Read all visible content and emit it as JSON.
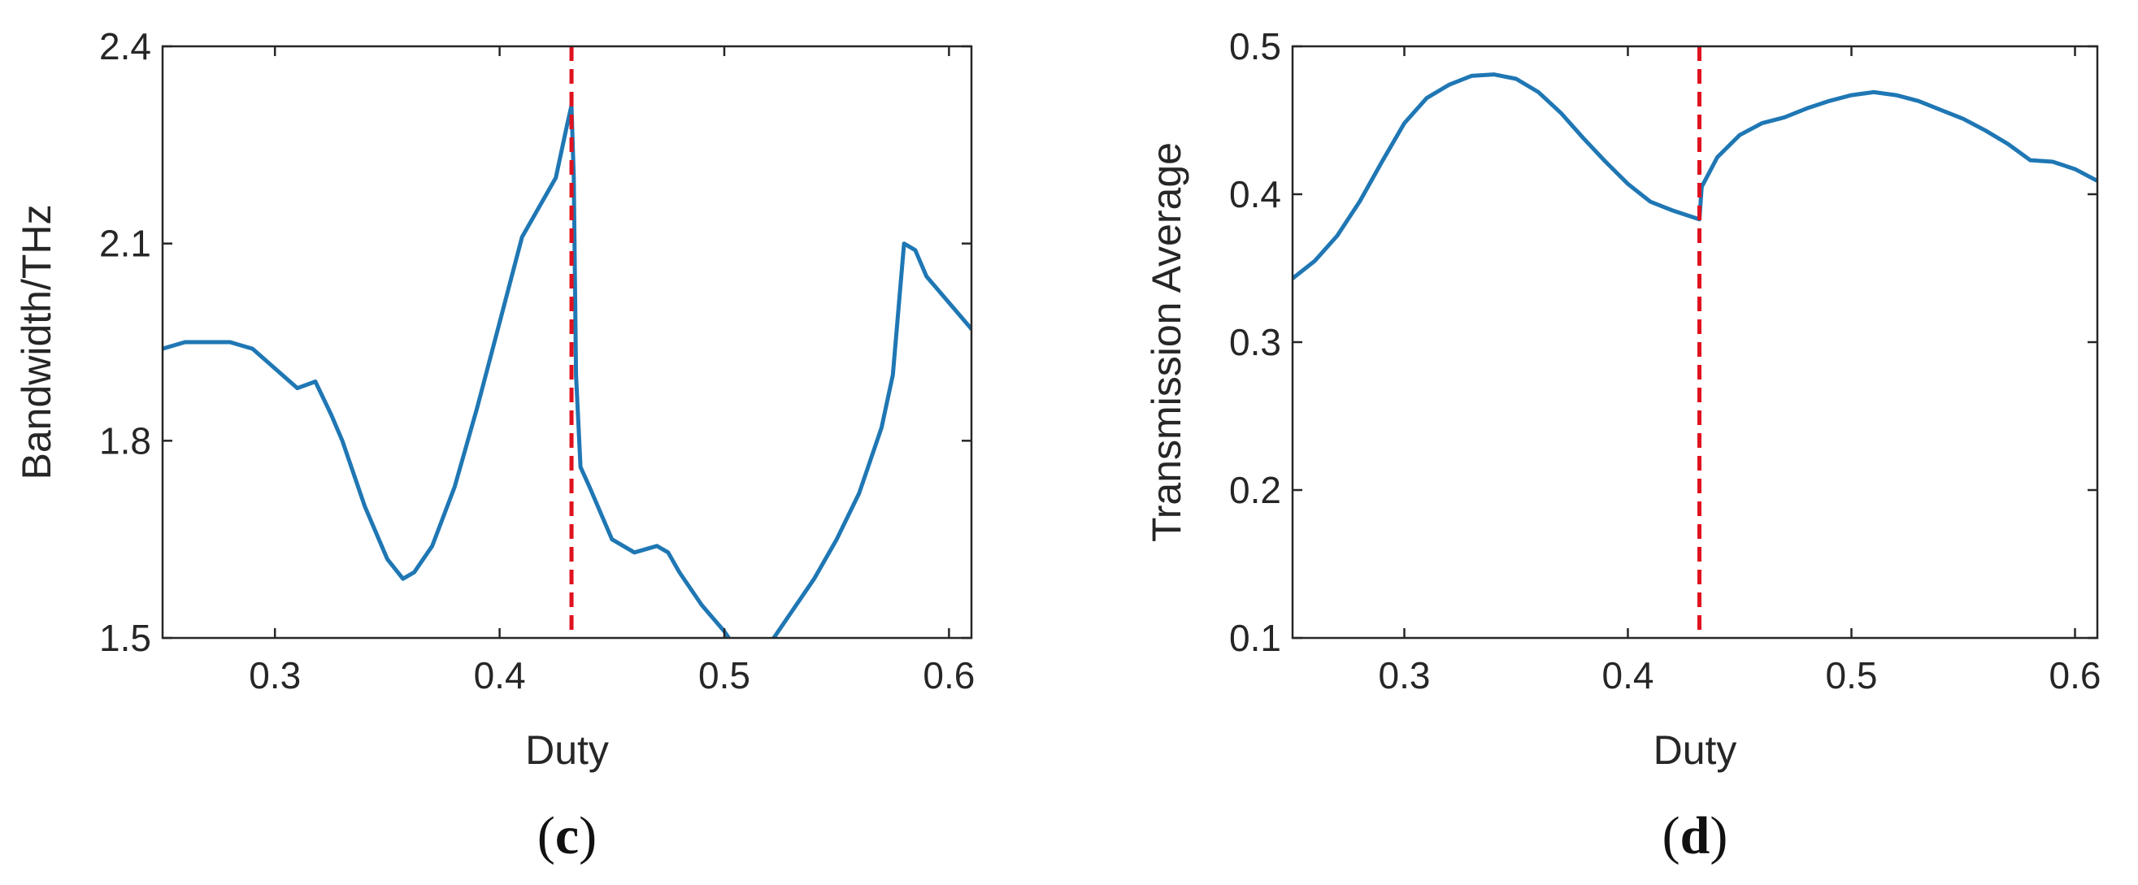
{
  "chart_data": [
    {
      "type": "line",
      "panel_label": "c",
      "title": "",
      "xlabel": "Duty",
      "ylabel": "Bandwidth/THz",
      "xlim": [
        0.25,
        0.61
      ],
      "ylim": [
        1.5,
        2.4
      ],
      "xticks": [
        0.3,
        0.4,
        0.5,
        0.6
      ],
      "xtick_labels": [
        "0.3",
        "0.4",
        "0.5",
        "0.6"
      ],
      "yticks": [
        1.5,
        1.8,
        2.1,
        2.4
      ],
      "ytick_labels": [
        "1.5",
        "1.8",
        "2.1",
        "2.4"
      ],
      "grid": false,
      "vline": {
        "x": 0.432,
        "color": "#e0121f",
        "style": "dashed"
      },
      "series": [
        {
          "color": "#1f77b4",
          "segments": [
            [
              [
                0.25,
                1.94
              ],
              [
                0.26,
                1.95
              ],
              [
                0.27,
                1.95
              ],
              [
                0.28,
                1.95
              ],
              [
                0.29,
                1.94
              ],
              [
                0.3,
                1.91
              ],
              [
                0.31,
                1.88
              ],
              [
                0.318,
                1.89
              ],
              [
                0.325,
                1.84
              ],
              [
                0.33,
                1.8
              ],
              [
                0.34,
                1.7
              ],
              [
                0.35,
                1.62
              ],
              [
                0.357,
                1.59
              ],
              [
                0.362,
                1.6
              ],
              [
                0.37,
                1.64
              ],
              [
                0.38,
                1.73
              ],
              [
                0.39,
                1.85
              ],
              [
                0.4,
                1.98
              ],
              [
                0.41,
                2.11
              ],
              [
                0.42,
                2.17
              ],
              [
                0.425,
                2.2
              ],
              [
                0.43,
                2.28
              ],
              [
                0.432,
                2.31
              ],
              [
                0.433,
                2.2
              ],
              [
                0.434,
                1.9
              ],
              [
                0.436,
                1.76
              ],
              [
                0.44,
                1.73
              ],
              [
                0.45,
                1.65
              ],
              [
                0.46,
                1.63
              ],
              [
                0.47,
                1.64
              ],
              [
                0.475,
                1.63
              ],
              [
                0.48,
                1.6
              ],
              [
                0.49,
                1.55
              ],
              [
                0.5,
                1.51
              ],
              [
                0.502,
                1.5
              ]
            ],
            [
              [
                0.522,
                1.5
              ],
              [
                0.53,
                1.54
              ],
              [
                0.54,
                1.59
              ],
              [
                0.55,
                1.65
              ],
              [
                0.56,
                1.72
              ],
              [
                0.57,
                1.82
              ],
              [
                0.575,
                1.9
              ],
              [
                0.58,
                2.1
              ],
              [
                0.585,
                2.09
              ],
              [
                0.59,
                2.05
              ],
              [
                0.6,
                2.01
              ],
              [
                0.61,
                1.97
              ]
            ]
          ]
        }
      ]
    },
    {
      "type": "line",
      "panel_label": "d",
      "title": "",
      "xlabel": "Duty",
      "ylabel": "Transmission Average",
      "xlim": [
        0.25,
        0.61
      ],
      "ylim": [
        0.1,
        0.5
      ],
      "xticks": [
        0.3,
        0.4,
        0.5,
        0.6
      ],
      "xtick_labels": [
        "0.3",
        "0.4",
        "0.5",
        "0.6"
      ],
      "yticks": [
        0.1,
        0.2,
        0.3,
        0.4,
        0.5
      ],
      "ytick_labels": [
        "0.1",
        "0.2",
        "0.3",
        "0.4",
        "0.5"
      ],
      "grid": false,
      "vline": {
        "x": 0.432,
        "color": "#e0121f",
        "style": "dashed"
      },
      "series": [
        {
          "color": "#1f77b4",
          "segments": [
            [
              [
                0.25,
                0.343
              ],
              [
                0.26,
                0.355
              ],
              [
                0.27,
                0.372
              ],
              [
                0.28,
                0.395
              ],
              [
                0.29,
                0.422
              ],
              [
                0.3,
                0.448
              ],
              [
                0.31,
                0.465
              ],
              [
                0.32,
                0.474
              ],
              [
                0.33,
                0.48
              ],
              [
                0.34,
                0.481
              ],
              [
                0.35,
                0.478
              ],
              [
                0.36,
                0.469
              ],
              [
                0.37,
                0.455
              ],
              [
                0.38,
                0.438
              ],
              [
                0.39,
                0.422
              ],
              [
                0.4,
                0.407
              ],
              [
                0.41,
                0.395
              ],
              [
                0.42,
                0.389
              ],
              [
                0.432,
                0.383
              ],
              [
                0.433,
                0.405
              ],
              [
                0.44,
                0.425
              ],
              [
                0.45,
                0.44
              ],
              [
                0.46,
                0.448
              ],
              [
                0.47,
                0.452
              ],
              [
                0.48,
                0.458
              ],
              [
                0.49,
                0.463
              ],
              [
                0.5,
                0.467
              ],
              [
                0.51,
                0.469
              ],
              [
                0.52,
                0.467
              ],
              [
                0.53,
                0.463
              ],
              [
                0.54,
                0.457
              ],
              [
                0.55,
                0.451
              ],
              [
                0.56,
                0.443
              ],
              [
                0.57,
                0.434
              ],
              [
                0.58,
                0.423
              ],
              [
                0.59,
                0.422
              ],
              [
                0.6,
                0.417
              ],
              [
                0.61,
                0.409
              ]
            ]
          ]
        }
      ]
    }
  ]
}
